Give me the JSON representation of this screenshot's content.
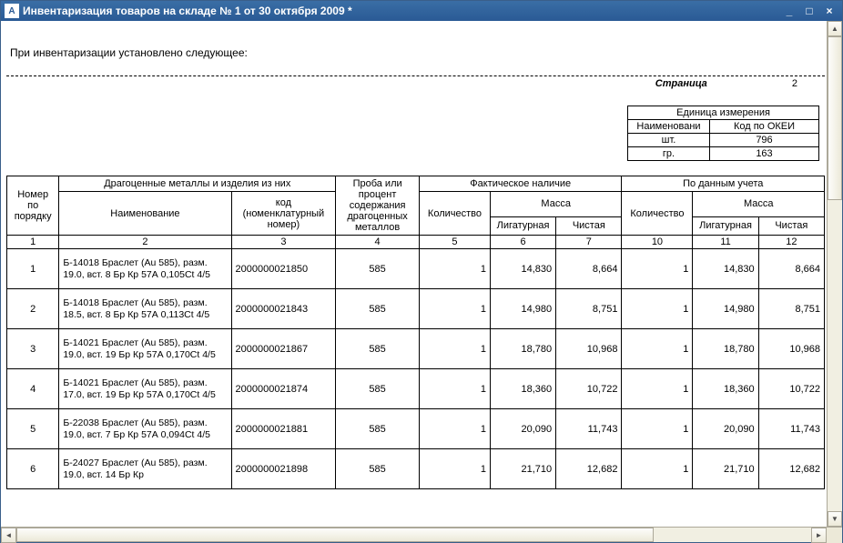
{
  "window": {
    "title": "Инвентаризация товаров на складе № 1 от 30 октября 2009 *",
    "icon_letter": "A"
  },
  "intro_text": "При инвентаризации установлено следующее:",
  "page_label": "Страница",
  "page_number": "2",
  "unit_block": {
    "title": "Единица измерения",
    "name_label": "Наименовани",
    "code_label": "Код по ОКЕИ",
    "rows": [
      {
        "name": "шт.",
        "code": "796"
      },
      {
        "name": "гр.",
        "code": "163"
      }
    ]
  },
  "headers": {
    "num": "Номер по порядку",
    "precious": "Драгоценные металлы и изделия из них",
    "name": "Наименование",
    "code": "код (номенклатурный номер)",
    "proba": "Проба или процент содержания драгоценных металлов",
    "fact": "Фактическое наличие",
    "acct": "По данным учета",
    "qty": "Количество",
    "mass": "Масса",
    "mass_lig": "Лигатурная",
    "mass_pure": "Чистая"
  },
  "colnums": [
    "1",
    "2",
    "3",
    "4",
    "5",
    "6",
    "7",
    "10",
    "11",
    "12"
  ],
  "rows": [
    {
      "n": "1",
      "name": "Б-14018 Браслет (Au 585), разм. 19.0, вст. 8 Бр Кр 57А 0,105Ct 4/5",
      "code": "2000000021850",
      "proba": "585",
      "fq": "1",
      "fl": "14,830",
      "fp": "8,664",
      "aq": "1",
      "al": "14,830",
      "ap": "8,664"
    },
    {
      "n": "2",
      "name": "Б-14018 Браслет (Au 585), разм. 18.5, вст. 8 Бр Кр 57А 0,113Ct 4/5",
      "code": "2000000021843",
      "proba": "585",
      "fq": "1",
      "fl": "14,980",
      "fp": "8,751",
      "aq": "1",
      "al": "14,980",
      "ap": "8,751"
    },
    {
      "n": "3",
      "name": "Б-14021 Браслет (Au 585), разм. 19.0, вст. 19 Бр Кр 57А 0,170Ct 4/5",
      "code": "2000000021867",
      "proba": "585",
      "fq": "1",
      "fl": "18,780",
      "fp": "10,968",
      "aq": "1",
      "al": "18,780",
      "ap": "10,968"
    },
    {
      "n": "4",
      "name": "Б-14021 Браслет (Au 585), разм. 17.0, вст. 19 Бр Кр 57А 0,170Ct 4/5",
      "code": "2000000021874",
      "proba": "585",
      "fq": "1",
      "fl": "18,360",
      "fp": "10,722",
      "aq": "1",
      "al": "18,360",
      "ap": "10,722"
    },
    {
      "n": "5",
      "name": "Б-22038 Браслет (Au 585), разм. 19.0, вст. 7 Бр Кр 57А 0,094Ct 4/5",
      "code": "2000000021881",
      "proba": "585",
      "fq": "1",
      "fl": "20,090",
      "fp": "11,743",
      "aq": "1",
      "al": "20,090",
      "ap": "11,743"
    },
    {
      "n": "6",
      "name": "Б-24027 Браслет (Au 585), разм. 19.0, вст. 14 Бр Кр",
      "code": "2000000021898",
      "proba": "585",
      "fq": "1",
      "fl": "21,710",
      "fp": "12,682",
      "aq": "1",
      "al": "21,710",
      "ap": "12,682"
    }
  ]
}
